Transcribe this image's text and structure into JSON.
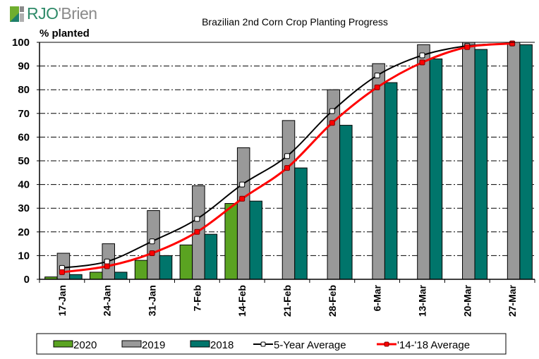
{
  "brand": {
    "logo_text_rjo": "RJO",
    "logo_text_rest": "'Brien",
    "logo_icon": "rjo-brien-logo-icon"
  },
  "chart_data": {
    "type": "bar",
    "title": "Brazilian 2nd Corn Crop Planting Progress",
    "xlabel": "",
    "ylabel": "% planted",
    "ylim": [
      0,
      100
    ],
    "yticks": [
      0,
      10,
      20,
      30,
      40,
      50,
      60,
      70,
      80,
      90,
      100
    ],
    "grid": true,
    "legend_position": "bottom",
    "categories": [
      "17-Jan",
      "24-Jan",
      "31-Jan",
      "7-Feb",
      "14-Feb",
      "21-Feb",
      "28-Feb",
      "6-Mar",
      "13-Mar",
      "20-Mar",
      "27-Mar"
    ],
    "series": [
      {
        "name": "2020",
        "type": "bar",
        "color": "#5aa321",
        "values": [
          1,
          3,
          8,
          14.5,
          32,
          null,
          null,
          null,
          null,
          null,
          null
        ]
      },
      {
        "name": "2019",
        "type": "bar",
        "color": "#999999",
        "values": [
          11,
          15,
          29,
          39.5,
          55.5,
          67,
          80,
          91,
          99,
          100,
          100
        ]
      },
      {
        "name": "2018",
        "type": "bar",
        "color": "#00756b",
        "values": [
          2,
          3,
          10,
          19,
          33,
          47,
          65,
          83,
          93,
          97,
          99
        ]
      },
      {
        "name": "5-Year Average",
        "type": "line",
        "color": "#000000",
        "marker": "white-square",
        "values": [
          4.8,
          7.5,
          16,
          25.5,
          40,
          52,
          71,
          86,
          94.5,
          98.5,
          99.5
        ]
      },
      {
        "name": "'14-'18 Average",
        "type": "line",
        "color": "#ff0000",
        "marker": "red-square",
        "values": [
          3,
          5.5,
          11,
          20,
          34,
          47,
          66,
          81,
          91.5,
          98,
          99.5
        ]
      }
    ]
  }
}
